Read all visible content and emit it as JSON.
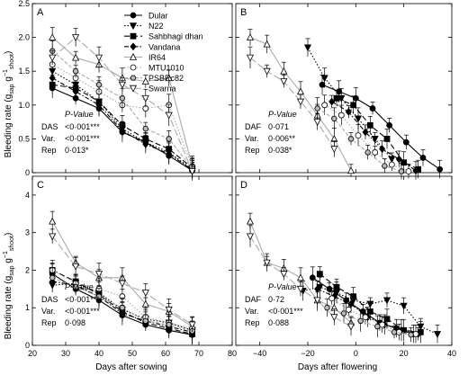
{
  "figure": {
    "ylabel": "Bleeding rate (g",
    "ylabel_sub1": "sap",
    "ylabel_mid": " g",
    "ylabel_sup": "−1",
    "ylabel_sub2": "shoot",
    "ylabel_end": ")",
    "xlabel_left": "Days after sowing",
    "xlabel_right": "Days after flowering"
  },
  "legend": {
    "placement": "top of panel A",
    "entries": [
      {
        "name": "Dular",
        "marker": "circle",
        "fill": "#000000",
        "dash": "solid"
      },
      {
        "name": "N22",
        "marker": "triangle-down",
        "fill": "#000000",
        "dash": "dotted"
      },
      {
        "name": "Sahbhagi dhan",
        "marker": "square",
        "fill": "#000000",
        "dash": "longdash"
      },
      {
        "name": "Vandana",
        "marker": "diamond",
        "fill": "#000000",
        "dash": "dashdot"
      },
      {
        "name": "IR64",
        "marker": "triangle-up",
        "fill": "#ffffff",
        "dash": "solid-grey"
      },
      {
        "name": "MTU1010",
        "marker": "circle",
        "fill": "#ffffff",
        "dash": "dotted-grey"
      },
      {
        "name": "PSBRc82",
        "marker": "hexagon",
        "fill": "#bbbbbb",
        "dash": "dashed-grey"
      },
      {
        "name": "Swarna",
        "marker": "triangle-down",
        "fill": "#ffffff",
        "dash": "longdash-grey"
      }
    ]
  },
  "chart_data": [
    {
      "type": "scatter",
      "panel": "A",
      "xlim": [
        20,
        80
      ],
      "ylim": [
        0,
        2.5
      ],
      "xticks": [
        "20",
        "30",
        "40",
        "50",
        "60",
        "70",
        "80"
      ],
      "yticks": [
        "0",
        "0.5",
        "1.0",
        "1.5",
        "2.0",
        "2.5"
      ],
      "stats": {
        "header": "P-Value",
        "rows": [
          [
            "DAS",
            "<0·001***"
          ],
          [
            "Var.",
            "<0·001***"
          ],
          [
            "Rep",
            "0·013*"
          ]
        ]
      },
      "series": [
        {
          "name": "Dular",
          "x": [
            26,
            33,
            40,
            47,
            54,
            61,
            68
          ],
          "y": [
            1.25,
            1.1,
            0.95,
            0.6,
            0.45,
            0.25,
            0.03
          ]
        },
        {
          "name": "N22",
          "x": [
            26,
            33,
            40,
            47,
            54,
            61,
            68
          ],
          "y": [
            1.5,
            1.3,
            1.05,
            0.65,
            0.45,
            0.3,
            0.05
          ]
        },
        {
          "name": "Sahbhagi dhan",
          "x": [
            26,
            33,
            40,
            47,
            54,
            61,
            68
          ],
          "y": [
            1.3,
            1.25,
            1.05,
            0.7,
            0.5,
            0.35,
            0.07
          ]
        },
        {
          "name": "Vandana",
          "x": [
            26,
            33,
            40,
            47,
            54,
            61,
            68
          ],
          "y": [
            1.4,
            1.2,
            1.0,
            0.62,
            0.42,
            0.28,
            0.04
          ]
        },
        {
          "name": "IR64",
          "x": [
            26,
            33,
            40,
            47,
            54,
            61,
            68
          ],
          "y": [
            2.0,
            1.7,
            1.6,
            1.4,
            1.35,
            1.4,
            0.1
          ]
        },
        {
          "name": "MTU1010",
          "x": [
            26,
            33,
            40,
            47,
            54,
            61,
            68
          ],
          "y": [
            1.6,
            1.4,
            1.2,
            1.0,
            0.95,
            1.0,
            0.08
          ]
        },
        {
          "name": "PSBRc82",
          "x": [
            26,
            33,
            40,
            47,
            54,
            61,
            68
          ],
          "y": [
            1.8,
            1.5,
            1.3,
            1.1,
            0.65,
            0.5,
            0.06
          ]
        },
        {
          "name": "Swarna",
          "x": [
            26,
            33,
            40,
            47,
            54,
            61,
            68
          ],
          "y": [
            1.7,
            2.0,
            1.7,
            1.3,
            1.1,
            0.85,
            0.02
          ]
        }
      ]
    },
    {
      "type": "scatter",
      "panel": "B",
      "xlim": [
        -50,
        40
      ],
      "ylim": [
        0,
        2.5
      ],
      "xticks": [
        "-40",
        "-20",
        "0",
        "20",
        "40"
      ],
      "yticks": [
        "0",
        "0.5",
        "1.0",
        "1.5",
        "2.0",
        "2.5"
      ],
      "stats": {
        "header": "P-Value",
        "rows": [
          [
            "DAF",
            "0·071"
          ],
          [
            "Var.",
            "0·006**"
          ],
          [
            "Rep",
            "0·038*"
          ]
        ]
      },
      "series": [
        {
          "name": "Dular",
          "x": [
            -14,
            -7,
            0,
            7,
            14,
            21,
            28,
            35
          ],
          "y": [
            1.3,
            1.2,
            1.1,
            0.95,
            0.7,
            0.45,
            0.22,
            0.05
          ]
        },
        {
          "name": "N22",
          "x": [
            -20,
            -13,
            -6,
            1,
            8,
            15
          ],
          "y": [
            1.85,
            1.4,
            1.1,
            0.8,
            0.5,
            0.2
          ]
        },
        {
          "name": "Sahbhagi dhan",
          "x": [
            -8,
            -1,
            6,
            13,
            20,
            26
          ],
          "y": [
            1.1,
            1.0,
            0.7,
            0.5,
            0.15,
            0.05
          ]
        },
        {
          "name": "Vandana",
          "x": [
            -10,
            -3,
            4,
            11,
            18,
            25
          ],
          "y": [
            1.05,
            0.9,
            0.6,
            0.35,
            0.2,
            0.03
          ]
        },
        {
          "name": "IR64",
          "x": [
            -44,
            -37,
            -30,
            -23,
            -16,
            -9,
            -2
          ],
          "y": [
            2.0,
            1.9,
            1.5,
            1.2,
            0.85,
            0.5,
            0.03
          ]
        },
        {
          "name": "MTU1010",
          "x": [
            -13,
            -6,
            1,
            8,
            15,
            22
          ],
          "y": [
            1.0,
            0.85,
            0.55,
            0.3,
            0.12,
            0.02
          ]
        },
        {
          "name": "PSBRc82",
          "x": [
            -16,
            -9,
            -2,
            5,
            12,
            19
          ],
          "y": [
            0.95,
            0.8,
            0.5,
            0.3,
            0.1,
            0.02
          ]
        },
        {
          "name": "Swarna",
          "x": [
            -44,
            -37,
            -30,
            -23,
            -16,
            -9
          ],
          "y": [
            1.7,
            1.5,
            1.35,
            1.05,
            0.75,
            0.35
          ]
        }
      ]
    },
    {
      "type": "scatter",
      "panel": "C",
      "xlim": [
        20,
        80
      ],
      "ylim": [
        0,
        4.5
      ],
      "xticks": [
        "20",
        "30",
        "40",
        "50",
        "60",
        "70",
        "80"
      ],
      "yticks": [
        "0",
        "1",
        "2",
        "3",
        "4"
      ],
      "stats": {
        "header": "P-Value",
        "rows": [
          [
            "DAS",
            "<0·001***"
          ],
          [
            "Var.",
            "<0·001***"
          ],
          [
            "Rep",
            "0·098"
          ]
        ]
      },
      "series": [
        {
          "name": "Dular",
          "x": [
            26,
            33,
            40,
            47,
            54,
            61,
            68
          ],
          "y": [
            1.9,
            1.5,
            1.2,
            0.8,
            0.55,
            0.4,
            0.28
          ]
        },
        {
          "name": "N22",
          "x": [
            26,
            33,
            40,
            47,
            54,
            61,
            68
          ],
          "y": [
            1.6,
            1.65,
            1.4,
            0.95,
            0.7,
            0.6,
            0.4
          ]
        },
        {
          "name": "Sahbhagi dhan",
          "x": [
            26,
            33,
            40,
            47,
            54,
            61,
            68
          ],
          "y": [
            2.0,
            1.7,
            1.35,
            0.9,
            0.6,
            0.45,
            0.3
          ]
        },
        {
          "name": "Vandana",
          "x": [
            26,
            33,
            40,
            47,
            54,
            61,
            68
          ],
          "y": [
            1.7,
            1.6,
            1.3,
            0.85,
            0.65,
            0.5,
            0.35
          ]
        },
        {
          "name": "IR64",
          "x": [
            26,
            33,
            40,
            47,
            54,
            61,
            68
          ],
          "y": [
            3.3,
            2.2,
            1.8,
            1.8,
            1.1,
            0.9,
            0.5
          ]
        },
        {
          "name": "MTU1010",
          "x": [
            26,
            33,
            40,
            47,
            54,
            61,
            68
          ],
          "y": [
            2.0,
            1.65,
            1.5,
            1.3,
            0.75,
            0.6,
            0.45
          ]
        },
        {
          "name": "PSBRc82",
          "x": [
            26,
            33,
            40,
            47,
            54,
            61,
            68
          ],
          "y": [
            1.8,
            1.55,
            1.3,
            1.0,
            0.65,
            0.55,
            0.38
          ]
        },
        {
          "name": "Swarna",
          "x": [
            26,
            33,
            40,
            47,
            54,
            61,
            68
          ],
          "y": [
            2.9,
            2.1,
            1.9,
            1.65,
            1.4,
            0.95,
            0.55
          ]
        }
      ]
    },
    {
      "type": "scatter",
      "panel": "D",
      "xlim": [
        -50,
        40
      ],
      "ylim": [
        0,
        4.5
      ],
      "xticks": [
        "-40",
        "-20",
        "0",
        "20",
        "40"
      ],
      "yticks": [
        "0",
        "1",
        "2",
        "3",
        "4"
      ],
      "stats": {
        "header": "P-Value",
        "rows": [
          [
            "DAF",
            "0·72"
          ],
          [
            "Var.",
            "<0·001***"
          ],
          [
            "Rep",
            "0·088"
          ]
        ]
      },
      "series": [
        {
          "name": "Dular",
          "x": [
            -18,
            -11,
            -4,
            3,
            10,
            17,
            24
          ],
          "y": [
            1.8,
            1.5,
            1.2,
            0.9,
            0.6,
            0.45,
            0.3
          ]
        },
        {
          "name": "N22",
          "x": [
            -22,
            -15,
            -8,
            -1,
            6,
            13,
            20,
            27,
            34
          ],
          "y": [
            1.45,
            1.55,
            1.4,
            1.2,
            1.1,
            1.2,
            1.05,
            0.5,
            0.3
          ]
        },
        {
          "name": "Sahbhagi dhan",
          "x": [
            -15,
            -8,
            -1,
            6,
            13,
            20,
            27
          ],
          "y": [
            1.9,
            1.55,
            1.3,
            0.9,
            0.7,
            0.4,
            0.35
          ]
        },
        {
          "name": "Vandana",
          "x": [
            -16,
            -9,
            -2,
            5,
            12,
            19,
            26
          ],
          "y": [
            1.5,
            1.3,
            1.1,
            0.75,
            0.55,
            0.4,
            0.3
          ]
        },
        {
          "name": "IR64",
          "x": [
            -44,
            -37,
            -30,
            -23,
            -16,
            -9,
            -2
          ],
          "y": [
            3.3,
            2.2,
            2.05,
            1.8,
            1.2,
            1.0,
            0.6
          ]
        },
        {
          "name": "MTU1010",
          "x": [
            -10,
            -3,
            4,
            11,
            18,
            25
          ],
          "y": [
            1.25,
            0.95,
            0.75,
            0.55,
            0.35,
            0.3
          ]
        },
        {
          "name": "PSBRc82",
          "x": [
            -12,
            -5,
            2,
            9,
            16,
            23
          ],
          "y": [
            1.0,
            0.85,
            0.65,
            0.5,
            0.35,
            0.28
          ]
        },
        {
          "name": "Swarna",
          "x": [
            -44,
            -37,
            -30,
            -23,
            -16,
            -9,
            -2
          ],
          "y": [
            2.9,
            2.2,
            1.9,
            1.5,
            1.2,
            0.75,
            0.5
          ]
        }
      ]
    }
  ]
}
